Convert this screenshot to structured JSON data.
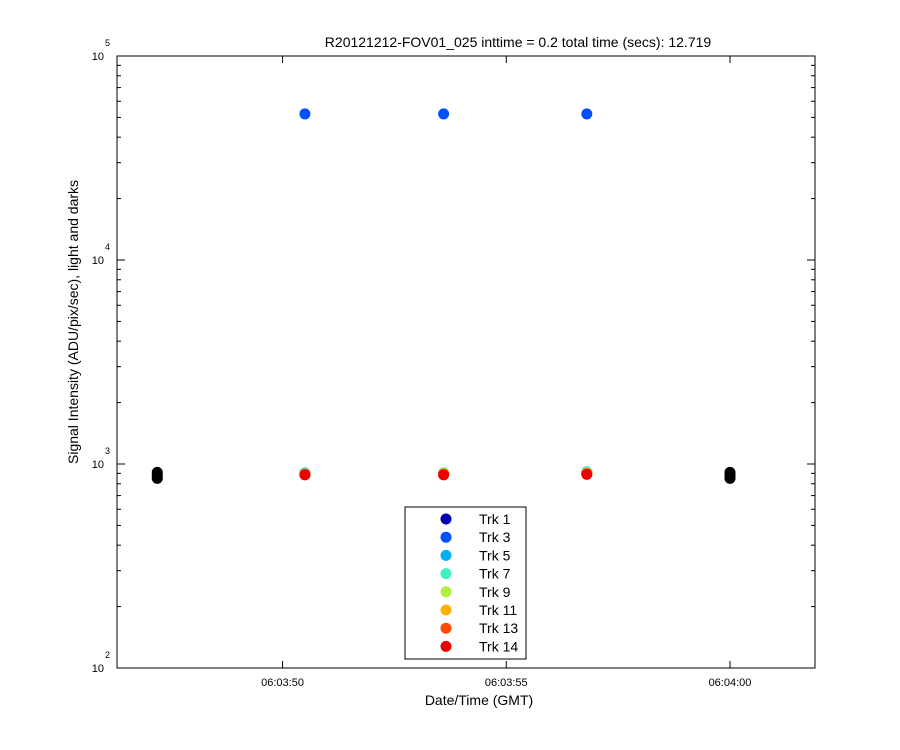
{
  "chart_data": {
    "type": "scatter",
    "title": "R20121212-FOV01_025 inttime = 0.2 total time (secs): 12.719",
    "xlabel": "Date/Time (GMT)",
    "ylabel": "Signal Intensity (ADU/pix/sec), light and darks",
    "yscale": "log",
    "ylim": [
      100,
      100000
    ],
    "xlim": [
      "06:03:46.3",
      "06:04:01.9"
    ],
    "grid": false,
    "legend_position": "bottom-center",
    "x_tick_labels": [
      "06:03:50",
      "06:03:55",
      "06:04:00"
    ],
    "y_tick_labels": [
      {
        "base": "10",
        "exp": "2"
      },
      {
        "base": "10",
        "exp": "3"
      },
      {
        "base": "10",
        "exp": "4"
      },
      {
        "base": "10",
        "exp": "5"
      }
    ],
    "series": [
      {
        "name": "Trk 1",
        "color": "#0000b0",
        "x": [
          "06:03:50.5",
          "06:03:53.6",
          "06:03:56.8"
        ],
        "y": [
          900,
          900,
          910
        ]
      },
      {
        "name": "Trk 3",
        "color": "#0050ff",
        "x": [
          "06:03:50.5",
          "06:03:53.6",
          "06:03:56.8"
        ],
        "y": [
          52000,
          52000,
          52000
        ]
      },
      {
        "name": "Trk 5",
        "color": "#00b0f0",
        "x": [
          "06:03:50.5",
          "06:03:53.6",
          "06:03:56.8"
        ],
        "y": [
          905,
          905,
          915
        ]
      },
      {
        "name": "Trk 7",
        "color": "#40f0c0",
        "x": [
          "06:03:50.5",
          "06:03:53.6",
          "06:03:56.8"
        ],
        "y": [
          900,
          905,
          910
        ]
      },
      {
        "name": "Trk 9",
        "color": "#b0f040",
        "x": [
          "06:03:50.5",
          "06:03:53.6",
          "06:03:56.8"
        ],
        "y": [
          895,
          900,
          905
        ]
      },
      {
        "name": "Trk 11",
        "color": "#ffb000",
        "x": [
          "06:03:50.5",
          "06:03:53.6",
          "06:03:56.8"
        ],
        "y": [
          890,
          895,
          900
        ]
      },
      {
        "name": "Trk 13",
        "color": "#ff4a00",
        "x": [
          "06:03:50.5",
          "06:03:53.6",
          "06:03:56.8"
        ],
        "y": [
          890,
          890,
          895
        ]
      },
      {
        "name": "Trk 14",
        "color": "#ee0000",
        "x": [
          "06:03:50.5",
          "06:03:53.6",
          "06:03:56.8"
        ],
        "y": [
          885,
          885,
          890
        ]
      }
    ],
    "darks": {
      "color": "#000000",
      "x": [
        "06:03:47.2",
        "06:03:47.2",
        "06:03:47.2",
        "06:03:47.2",
        "06:04:00.0",
        "06:04:00.0",
        "06:04:00.0",
        "06:04:00.0"
      ],
      "y": [
        850,
        870,
        890,
        910,
        850,
        870,
        890,
        910
      ]
    }
  }
}
